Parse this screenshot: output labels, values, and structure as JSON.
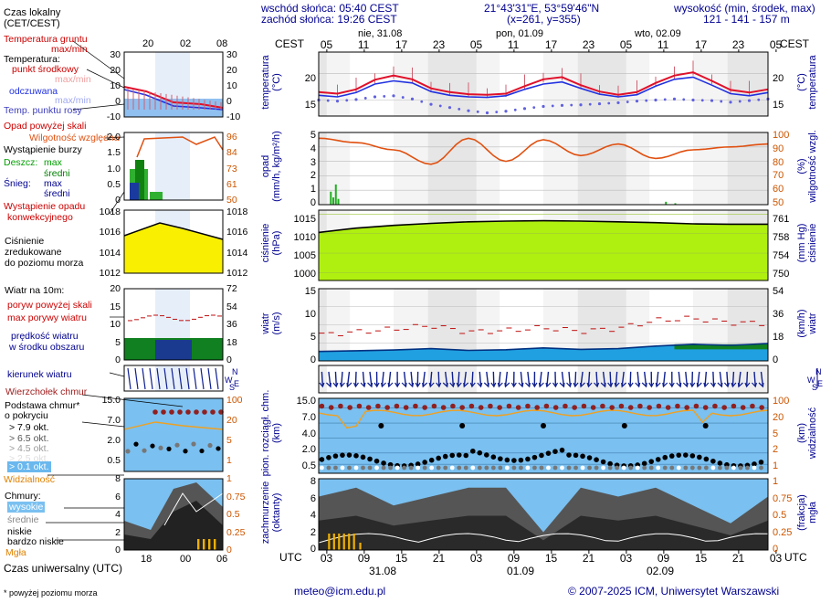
{
  "header": {
    "sunrise": "wschód słońca: 05:40 CEST",
    "sunset": "zachód słońca: 19:26 CEST",
    "coords": "21°43'31\"E, 53°59'46\"N",
    "grid": "(x=261, y=355)",
    "height_title": "wysokość (min, środek, max)",
    "height_values": "121 - 141 - 157 m"
  },
  "legend": {
    "local_time": "Czas lokalny",
    "local_time_sub": "(CET/CEST)",
    "local_ticks": [
      "20",
      "02",
      "08"
    ],
    "ground_temp": "Temperatura gruntu",
    "ground_temp_sub": "max/min",
    "temperature": "Temperatura:",
    "mid_point": "punkt środkowy",
    "max_min": "max/min",
    "felt": "odczuwana",
    "felt_max_min": "max/min",
    "dew_point": "Temp. punktu rosy",
    "precip_above": "Opad powyżej skali",
    "humidity": "Wilgotność względna",
    "storm": "Wystąpienie burzy",
    "rain": "Deszcz:",
    "rain_max": "max",
    "rain_mean": "średni",
    "snow": "Śnieg:",
    "snow_max": "max",
    "snow_mean": "średni",
    "convective": "Wystąpienie opadu",
    "convective2": "konwekcyjnego",
    "pressure1": "Ciśnienie",
    "pressure2": "zredukowane",
    "pressure3": "do poziomu morza",
    "wind10": "Wiatr na 10m:",
    "gust_above": "poryw powyżej skali",
    "gust_max": "max porywy wiatru",
    "wind_speed": "prędkość wiatru",
    "wind_area": "w środku obszaru",
    "wind_dir": "kierunek wiatru",
    "cloud_top": "Wierzchołek chmur",
    "cloud_base": "Podstawa chmur*",
    "cloud_base2": "o pokryciu",
    "okt79": "> 7.9 okt.",
    "okt65": "> 6.5 okt.",
    "okt45": "> 4.5 okt.",
    "okt25": "> 2.5 okt.",
    "okt01": "> 0.1 okt.",
    "visibility": "Widzialność",
    "clouds": "Chmury:",
    "high": "wysokie",
    "middle": "średnie",
    "low": "niskie",
    "very_low": "bardzo niskie",
    "fog": "Mgła",
    "utc_time": "Czas uniwersalny (UTC)",
    "utc_ticks": [
      "18",
      "00",
      "06"
    ],
    "footnote": "* powyżej poziomu morza"
  },
  "top_axis": {
    "cest": "CEST",
    "hours": [
      "05",
      "11",
      "17",
      "23",
      "05",
      "11",
      "17",
      "23",
      "05",
      "11",
      "17",
      "23",
      "05"
    ],
    "days": [
      "nie, 31.08",
      "pon, 01.09",
      "wto, 02.09"
    ]
  },
  "bottom_axis": {
    "utc": "UTC",
    "hours": [
      "03",
      "09",
      "15",
      "21",
      "03",
      "09",
      "15",
      "21",
      "03",
      "09",
      "15",
      "21",
      "03"
    ],
    "dates": [
      "31.08",
      "01.09",
      "02.09"
    ]
  },
  "panels": {
    "temperature": {
      "left_label": "temperatura",
      "left_unit": "(°C)",
      "right_label": "temperatura",
      "right_unit": "(°C)",
      "ticks": [
        "20",
        "15"
      ]
    },
    "precip": {
      "left_label": "opad",
      "left_unit": "(mm/h, kg/m²/h)",
      "right_label": "wilgotność wzgl.",
      "right_unit": "(%)",
      "ticks_left": [
        "5",
        "4",
        "3",
        "2",
        "1",
        "0"
      ],
      "ticks_right": [
        "100",
        "90",
        "80",
        "70",
        "60",
        "50"
      ]
    },
    "pressure": {
      "left_label": "ciśnienie",
      "left_unit": "(hPa)",
      "right_label": "ciśnienie",
      "right_unit": "(mm Hg)",
      "ticks_left": [
        "1015",
        "1010",
        "1005",
        "1000"
      ],
      "ticks_right": [
        "761",
        "758",
        "754",
        "750"
      ]
    },
    "wind": {
      "left_label": "wiatr",
      "left_unit": "(m/s)",
      "right_label": "wiatr",
      "right_unit": "(km/h)",
      "ticks_left": [
        "15",
        "10",
        "5",
        "0"
      ],
      "ticks_right": [
        "54",
        "36",
        "18",
        "0"
      ]
    },
    "clouds": {
      "left_label": "pion. rozciągł. chm.",
      "left_unit": "(km)",
      "right_label": "widzialność",
      "right_unit": "(km)",
      "ticks_left": [
        "15.0",
        "7.0",
        "4.0",
        "2.0",
        "0.5"
      ],
      "ticks_right": [
        "100",
        "20",
        "5",
        "2",
        "1"
      ]
    },
    "cover": {
      "left_label": "zachmurzenie",
      "left_unit": "(oktanty)",
      "right_label": "mgła",
      "right_unit": "(frakcja)",
      "ticks_left": [
        "8",
        "6",
        "4",
        "2",
        "0"
      ],
      "ticks_right": [
        "1",
        "0.75",
        "0.5",
        "0.25",
        "0"
      ]
    }
  },
  "legend_axes": {
    "temp_left": [
      "30",
      "20",
      "10",
      "0",
      "-10"
    ],
    "temp_right": [
      "30",
      "20",
      "10",
      "0",
      "-10"
    ],
    "precip_left": [
      "2.0",
      "1.5",
      "1.0",
      "0.5",
      "0"
    ],
    "precip_right": [
      "96",
      "84",
      "73",
      "61",
      "50"
    ],
    "press_left": [
      "1018",
      "1016",
      "1014",
      "1012"
    ],
    "press_right": [
      "1018",
      "1016",
      "1014",
      "1012"
    ],
    "wind_left": [
      "20",
      "15",
      "10",
      "5",
      "0"
    ],
    "wind_right": [
      "72",
      "54",
      "36",
      "18",
      "0"
    ],
    "cld_left": [
      "15.0",
      "7.0",
      "2.0",
      "0.5"
    ],
    "cld_right": [
      "100",
      "20",
      "5",
      "1"
    ],
    "cov_left": [
      "8",
      "6",
      "4",
      "2",
      "0"
    ],
    "cov_right": [
      "1",
      "0.75",
      "0.5",
      "0.25",
      "0"
    ]
  },
  "footer": {
    "email": "meteo@icm.edu.pl",
    "copyright": "© 2007-2025 ICM, Uniwersytet Warszawski"
  },
  "colors": {
    "temp_line": "#e0102a",
    "felt_line": "#2030e0",
    "dew_point": "#6060e0",
    "humidity": "#e05010",
    "pressure_fill": "#b0f010",
    "wind_fill": "#20a0e0",
    "cloud_sky": "#7ac0f0",
    "night_shade": "#e6e6e6"
  },
  "chart_data": [
    {
      "type": "line",
      "name": "temperature",
      "x": [
        0,
        3,
        6,
        9,
        12,
        15,
        18,
        21,
        24,
        27,
        30,
        33,
        36,
        39,
        42,
        45,
        48,
        51,
        54,
        57,
        60,
        63,
        66,
        69,
        72
      ],
      "series": [
        {
          "name": "punkt środkowy",
          "values": [
            16.5,
            16.2,
            17.0,
            18.8,
            19.6,
            18.9,
            17.2,
            16.5,
            16.1,
            16.0,
            16.2,
            17.6,
            18.9,
            19.3,
            17.8,
            16.6,
            16.0,
            16.5,
            18.2,
            19.6,
            20.2,
            18.6,
            16.9,
            16.4,
            17.0
          ]
        },
        {
          "name": "odczuwana",
          "values": [
            15.9,
            15.6,
            16.4,
            18.0,
            18.6,
            18.2,
            16.6,
            15.9,
            15.6,
            15.5,
            15.8,
            17.0,
            18.0,
            18.4,
            17.2,
            16.1,
            15.6,
            16.0,
            17.6,
            18.9,
            19.3,
            17.8,
            16.2,
            15.8,
            16.4
          ]
        },
        {
          "name": "Temp. punktu rosy",
          "values": [
            15.0,
            14.8,
            15.1,
            15.6,
            15.8,
            15.2,
            14.2,
            13.6,
            13.0,
            12.6,
            12.9,
            13.4,
            13.8,
            14.0,
            14.1,
            14.3,
            14.5,
            14.8,
            15.0,
            15.2,
            15.0,
            14.9,
            14.6,
            14.9,
            15.2
          ]
        }
      ],
      "ylim": [
        12,
        24
      ]
    },
    {
      "type": "line",
      "name": "humidity_precip",
      "x": [
        0,
        6,
        12,
        18,
        24,
        30,
        36,
        42,
        48,
        54,
        60,
        66,
        72
      ],
      "series": [
        {
          "name": "Wilgotność względna",
          "values": [
            96,
            93,
            88,
            78,
            96,
            80,
            95,
            84,
            92,
            82,
            88,
            90,
            92
          ]
        },
        {
          "name": "Deszcz max",
          "values": [
            0,
            0,
            0,
            0,
            0,
            0,
            0,
            0,
            0,
            0,
            0,
            0,
            0
          ]
        }
      ],
      "ylim": [
        50,
        100
      ]
    },
    {
      "type": "area",
      "name": "pressure",
      "x": [
        0,
        6,
        12,
        18,
        24,
        30,
        36,
        42,
        48,
        54,
        60,
        66,
        72
      ],
      "values": [
        1010.3,
        1011.4,
        1012.1,
        1012.6,
        1013.0,
        1013.2,
        1013.3,
        1013.2,
        1013.0,
        1012.8,
        1012.5,
        1012.4,
        1012.4
      ],
      "ylim": [
        998,
        1016
      ]
    },
    {
      "type": "area",
      "name": "wind",
      "x": [
        0,
        6,
        12,
        18,
        24,
        30,
        36,
        42,
        48,
        54,
        60,
        66,
        72
      ],
      "series": [
        {
          "name": "prędkość wiatru",
          "values": [
            2.6,
            2.8,
            3.0,
            3.4,
            2.9,
            3.1,
            3.6,
            3.2,
            3.4,
            4.1,
            4.6,
            4.3,
            4.8
          ]
        },
        {
          "name": "max porywy wiatru",
          "values": [
            7.2,
            8.0,
            8.8,
            9.8,
            8.0,
            8.4,
            9.2,
            8.2,
            9.0,
            11.2,
            11.8,
            10.6,
            10.4
          ]
        }
      ],
      "ylim": [
        0,
        20
      ]
    },
    {
      "type": "area",
      "name": "cloud_cover",
      "x": [
        0,
        6,
        12,
        18,
        24,
        30,
        36,
        42,
        48,
        54,
        60,
        66,
        72
      ],
      "values": [
        6,
        7,
        5,
        6,
        7,
        7,
        2,
        7,
        6,
        7,
        5,
        3,
        6
      ],
      "ylim": [
        0,
        8
      ]
    }
  ]
}
